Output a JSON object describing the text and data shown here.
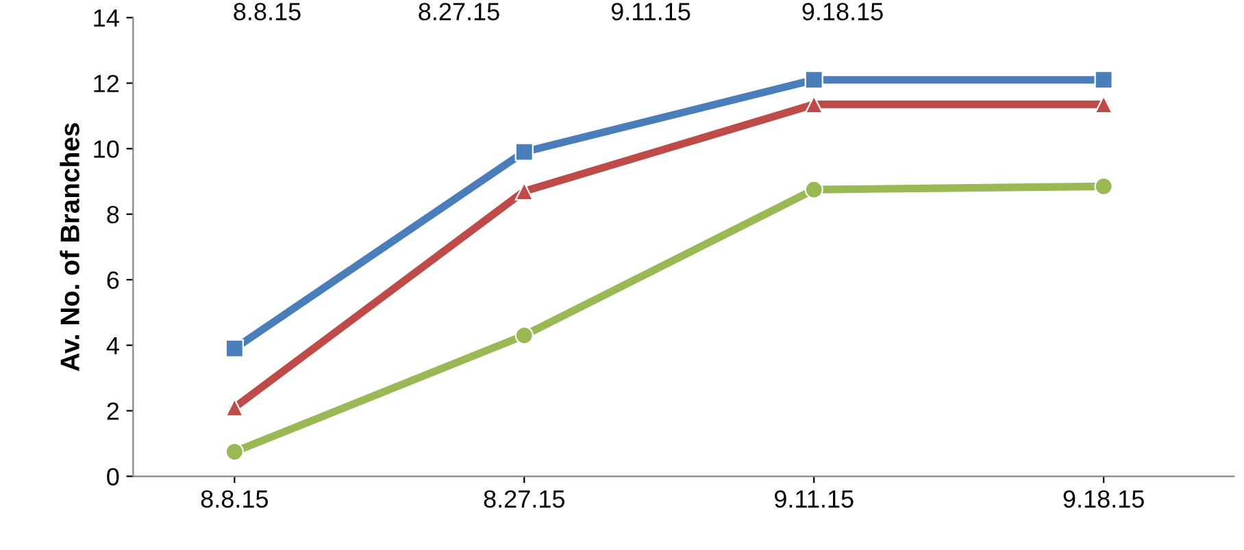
{
  "chart_data": {
    "type": "line",
    "ylabel": "Av. No. of Branches",
    "categories": [
      "8.8.15",
      "8.27.15",
      "9.11.15",
      "9.18.15"
    ],
    "series": [
      {
        "color": "#4a7ebb",
        "marker": "square",
        "values": [
          3.9,
          9.9,
          12.1,
          12.1
        ]
      },
      {
        "color": "#be4b48",
        "marker": "triangle",
        "values": [
          2.1,
          8.7,
          11.35,
          11.35
        ]
      },
      {
        "color": "#98b954",
        "marker": "circle",
        "values": [
          0.75,
          4.3,
          8.75,
          8.85
        ]
      }
    ],
    "ylim": [
      0,
      14
    ],
    "yticks": [
      0,
      2,
      4,
      6,
      8,
      10,
      12,
      14
    ],
    "grid": false,
    "legend": false,
    "annotations": [
      "8.8.15",
      "8.27.15",
      "9.11.15",
      "9.18.15"
    ]
  }
}
